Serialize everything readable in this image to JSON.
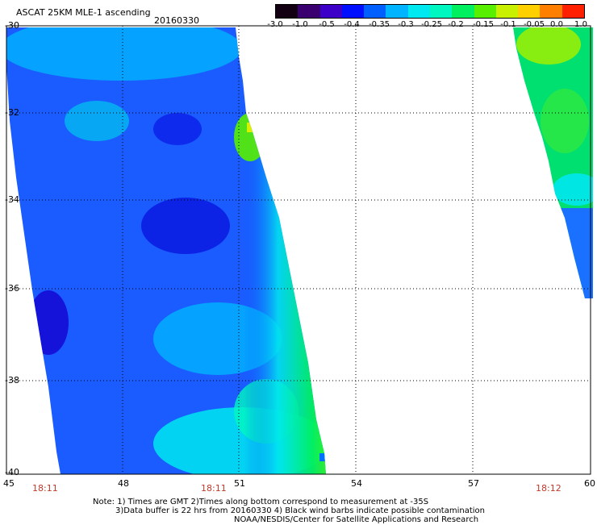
{
  "header": {
    "title": "ASCAT 25KM MLE-1 ascending",
    "date": "20160330"
  },
  "colorbar": {
    "labels": [
      "-3.0",
      "-1.0",
      "-0.5",
      "-0.4",
      "-0.35",
      "-0.3",
      "-0.25",
      "-0.2",
      "-0.15",
      "-0.1",
      "-0.05",
      "0.0",
      "1.0"
    ],
    "colors": [
      "#120012",
      "#3a0070",
      "#3c00c8",
      "#0010ff",
      "#0060ff",
      "#00b4ff",
      "#00e8f0",
      "#00f8c0",
      "#00f060",
      "#58f000",
      "#c8f000",
      "#ffd000",
      "#ff8000",
      "#ff2000"
    ]
  },
  "map": {
    "lat_labels": [
      "-30",
      "-32",
      "-34",
      "-36",
      "-38",
      "-40"
    ],
    "lon_labels": [
      "45",
      "48",
      "51",
      "54",
      "57",
      "60"
    ],
    "time_labels": [
      "18:11",
      "18:11",
      "18:12"
    ]
  },
  "notes": {
    "line1": "Note: 1) Times are GMT 2)Times along bottom correspond to measurement at -35S",
    "line2": "3)Data buffer is 22 hrs from 20160330 4) Black wind barbs indicate possible contamination",
    "line3": "NOAA/NESDIS/Center for Satellite Applications and Research"
  }
}
